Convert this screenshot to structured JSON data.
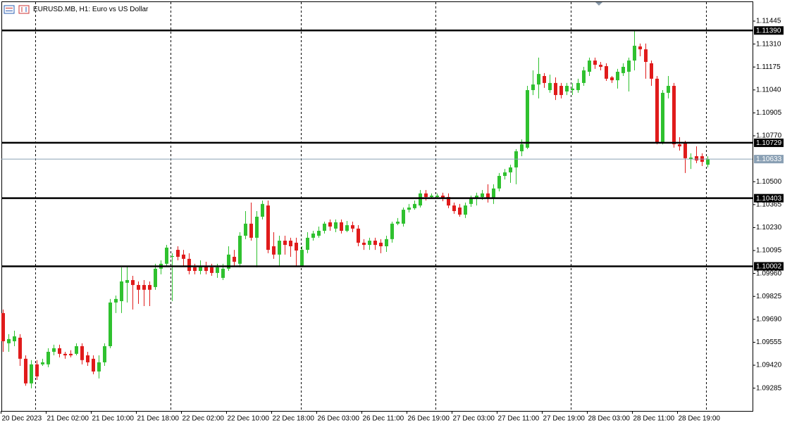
{
  "chart_data": {
    "type": "candlestick",
    "title": "EURUSD.MB, H1:  Euro vs US Dollar",
    "categories": [
      "20 Dec 2023",
      null,
      null,
      null,
      null,
      null,
      null,
      null,
      "21 Dec 02:00",
      null,
      null,
      null,
      null,
      null,
      null,
      null,
      "21 Dec 10:00",
      null,
      null,
      null,
      null,
      null,
      null,
      null,
      "21 Dec 18:00",
      null,
      null,
      null,
      null,
      null,
      null,
      null,
      "22 Dec 02:00",
      null,
      null,
      null,
      null,
      null,
      null,
      null,
      "22 Dec 10:00",
      null,
      null,
      null,
      null,
      null,
      null,
      null,
      "22 Dec 18:00",
      null,
      null,
      null,
      null,
      null,
      null,
      null,
      "26 Dec 03:00",
      null,
      null,
      null,
      null,
      null,
      null,
      null,
      "26 Dec 11:00",
      null,
      null,
      null,
      null,
      null,
      null,
      null,
      "26 Dec 19:00",
      null,
      null,
      null,
      null,
      null,
      null,
      null,
      "27 Dec 03:00",
      null,
      null,
      null,
      null,
      null,
      null,
      null,
      "27 Dec 11:00",
      null,
      null,
      null,
      null,
      null,
      null,
      null,
      "27 Dec 19:00",
      null,
      null,
      null,
      null,
      null,
      null,
      null,
      "28 Dec 03:00",
      null,
      null,
      null,
      null,
      null,
      null,
      null,
      "28 Dec 11:00",
      null,
      null,
      null,
      null,
      null,
      null,
      null,
      "28 Dec 19:00",
      null,
      null,
      null,
      null,
      null
    ],
    "open": [
      1.09727,
      1.09549,
      1.09561,
      1.09582,
      1.09458,
      1.09313,
      1.09425,
      1.09425,
      1.09425,
      1.09499,
      1.0952,
      1.09487,
      1.09487,
      1.09487,
      1.09532,
      1.09478,
      1.09458,
      1.09383,
      1.09437,
      1.09532,
      1.09789,
      1.09797,
      1.09905,
      1.09921,
      1.09892,
      1.09892,
      1.09892,
      1.0988,
      1.09988,
      1.10017,
      1.10058,
      1.10099,
      1.10071,
      1.10046,
      1.09996,
      1.09975,
      1.10004,
      1.09996,
      1.09963,
      1.09934,
      1.09988,
      1.10058,
      1.10017,
      1.10182,
      1.10253,
      1.1017,
      1.10294,
      1.1036,
      1.1012,
      1.10071,
      1.10153,
      1.10153,
      1.10141,
      1.10004,
      1.10099,
      1.1017,
      1.10182,
      1.10211,
      1.10261,
      1.10224,
      1.10261,
      1.10211,
      1.10244,
      1.10224,
      1.10141,
      1.10128,
      1.10153,
      1.10141,
      1.1012,
      1.10162,
      1.10253,
      1.10253,
      1.10335,
      1.10344,
      1.1036,
      1.10431,
      1.1041,
      1.1041,
      1.10418,
      1.1041,
      1.1036,
      1.10348,
      1.10306,
      1.10369,
      1.10402,
      1.1041,
      1.10431,
      1.10402,
      1.1046,
      1.10534,
      1.10555,
      1.10584,
      1.10679,
      1.107,
      1.11039,
      1.11072,
      1.11122,
      1.11039,
      1.11081,
      1.11064,
      1.11031,
      1.11039,
      1.11039,
      1.11081,
      1.11147,
      1.11213,
      1.11188,
      1.1118,
      1.11114,
      1.11097,
      1.11139,
      1.11147,
      1.11213,
      1.11296,
      1.11279,
      1.11197,
      1.11106,
      1.10729,
      1.11023,
      1.11064,
      1.1072,
      1.10725,
      1.10634,
      1.1065,
      1.1065,
      1.106
    ],
    "high": [
      1.09748,
      1.09603,
      1.09623,
      1.09603,
      1.09478,
      1.0945,
      1.0945,
      1.09458,
      1.0952,
      1.09541,
      1.09541,
      1.09499,
      1.09508,
      1.09549,
      1.09549,
      1.09499,
      1.09478,
      1.09478,
      1.09549,
      1.0981,
      1.0983,
      1.09996,
      1.10004,
      1.09946,
      1.09913,
      1.09921,
      1.09913,
      1.10017,
      1.10037,
      1.10128,
      1.10079,
      1.1012,
      1.10099,
      1.10079,
      1.10017,
      1.10037,
      1.10029,
      1.10017,
      1.10017,
      1.10017,
      1.1012,
      1.10099,
      1.10203,
      1.10327,
      1.10377,
      1.10327,
      1.10389,
      1.10389,
      1.10203,
      1.10182,
      1.10182,
      1.1017,
      1.1017,
      1.1012,
      1.10203,
      1.10211,
      1.10236,
      1.10265,
      1.10278,
      1.10278,
      1.10278,
      1.10269,
      1.10265,
      1.10244,
      1.10162,
      1.1017,
      1.1017,
      1.10162,
      1.10182,
      1.10265,
      1.10286,
      1.10348,
      1.10369,
      1.10389,
      1.10451,
      1.10451,
      1.10431,
      1.10431,
      1.10435,
      1.10431,
      1.10377,
      1.10369,
      1.10377,
      1.10418,
      1.10435,
      1.10451,
      1.10485,
      1.10485,
      1.10551,
      1.10575,
      1.106,
      1.10692,
      1.10749,
      1.11064,
      1.11155,
      1.1123,
      1.11139,
      1.1113,
      1.11114,
      1.11081,
      1.11081,
      1.11081,
      1.11106,
      1.11176,
      1.1123,
      1.1123,
      1.11205,
      1.11197,
      1.11122,
      1.11164,
      1.11197,
      1.1123,
      1.11387,
      1.11313,
      1.11313,
      1.11213,
      1.11122,
      1.11039,
      1.11122,
      1.11081,
      1.10762,
      1.10741,
      1.10667,
      1.10708,
      1.10667,
      1.1065
    ],
    "low": [
      1.09499,
      1.09499,
      1.09532,
      1.09416,
      1.09299,
      1.09284,
      1.09333,
      1.09416,
      1.09408,
      1.09478,
      1.09466,
      1.09458,
      1.09466,
      1.09478,
      1.09425,
      1.09416,
      1.09367,
      1.09342,
      1.09416,
      1.0952,
      1.09727,
      1.09727,
      1.09789,
      1.09748,
      1.09781,
      1.09768,
      1.09768,
      1.09864,
      1.09955,
      1.10004,
      1.09797,
      1.10037,
      1.10004,
      1.09955,
      1.09955,
      1.09955,
      1.09955,
      1.09946,
      1.09934,
      1.09921,
      1.09975,
      1.10004,
      1.09996,
      1.10162,
      1.10153,
      1.09996,
      1.10278,
      1.10079,
      1.10046,
      1.10004,
      1.10071,
      1.10058,
      1.10004,
      1.09996,
      1.10079,
      1.10153,
      1.1017,
      1.10195,
      1.10211,
      1.10203,
      1.10195,
      1.10203,
      1.10203,
      1.1012,
      1.10099,
      1.10099,
      1.10099,
      1.10079,
      1.10087,
      1.10141,
      1.10244,
      1.10236,
      1.10319,
      1.10335,
      1.10348,
      1.10389,
      1.10402,
      1.10402,
      1.10385,
      1.10344,
      1.10311,
      1.10294,
      1.10286,
      1.10352,
      1.1036,
      1.10393,
      1.10377,
      1.10369,
      1.10443,
      1.10513,
      1.10493,
      1.10485,
      1.1065,
      1.10692,
      1.1101,
      1.1099,
      1.11052,
      1.11023,
      1.10981,
      1.1099,
      1.1101,
      1.1101,
      1.11023,
      1.11064,
      1.11122,
      1.11164,
      1.11155,
      1.11093,
      1.11081,
      1.11048,
      1.11122,
      1.11031,
      1.11155,
      1.11238,
      1.11106,
      1.11064,
      1.1072,
      1.1072,
      1.1099,
      1.107,
      1.10683,
      1.10551,
      1.10575,
      1.10609,
      1.10592,
      1.10584
    ],
    "close": [
      1.09561,
      1.09574,
      1.0959,
      1.09458,
      1.09313,
      1.09425,
      1.09354,
      1.09437,
      1.09499,
      1.0952,
      1.09487,
      1.09478,
      1.09478,
      1.09532,
      1.0945,
      1.09437,
      1.09383,
      1.09437,
      1.09532,
      1.09789,
      1.0981,
      1.09913,
      1.09921,
      1.09892,
      1.09864,
      1.09864,
      1.09864,
      1.09988,
      1.10017,
      1.10112,
      1.10062,
      1.10058,
      1.10046,
      1.09975,
      1.09975,
      1.10004,
      1.09975,
      1.09963,
      1.09996,
      1.09988,
      1.10071,
      1.10029,
      1.10182,
      1.10253,
      1.1017,
      1.10294,
      1.10369,
      1.10099,
      1.10071,
      1.10153,
      1.10128,
      1.1012,
      1.10095,
      1.10099,
      1.1017,
      1.10195,
      1.10211,
      1.10253,
      1.10236,
      1.10261,
      1.10211,
      1.10244,
      1.10224,
      1.10141,
      1.10128,
      1.10153,
      1.10128,
      1.1012,
      1.10162,
      1.10253,
      1.10265,
      1.10335,
      1.10348,
      1.10369,
      1.10431,
      1.1041,
      1.10418,
      1.10418,
      1.10402,
      1.1036,
      1.10327,
      1.10306,
      1.1036,
      1.10402,
      1.10418,
      1.10431,
      1.10402,
      1.1046,
      1.10534,
      1.10555,
      1.10584,
      1.10679,
      1.1072,
      1.11039,
      1.11072,
      1.11134,
      1.11081,
      1.11081,
      1.1101,
      1.1101,
      1.11064,
      1.11048,
      1.11081,
      1.11155,
      1.11213,
      1.11188,
      1.11176,
      1.11106,
      1.11097,
      1.11147,
      1.11176,
      1.11213,
      1.113,
      1.11279,
      1.11205,
      1.11106,
      1.10729,
      1.11023,
      1.11064,
      1.1072,
      1.10708,
      1.10638,
      1.10642,
      1.10625,
      1.10617,
      1.10633
    ],
    "up_color": "#2fc12f",
    "down_color": "#e01b1b",
    "ylim": [
      1.09151,
      1.11561
    ],
    "yticks": [
      1.11445,
      {
        "value": 1.1131,
        "label": "1.11310"
      },
      1.11175,
      {
        "value": 1.1104,
        "label": "1.11040"
      },
      1.10905,
      {
        "value": 1.1077,
        "label": "1.10770"
      },
      {
        "value": 1.105,
        "label": "1.10500"
      },
      1.10365,
      {
        "value": 1.1023,
        "label": "1.10230"
      },
      1.10095,
      {
        "value": 1.0996,
        "label": "1.09960"
      },
      1.09825,
      {
        "value": 1.0969,
        "label": "1.09690"
      },
      1.09555,
      {
        "value": 1.0942,
        "label": "1.09420"
      },
      1.09285
    ],
    "levels": [
      {
        "value": 1.1139,
        "label": "1.11390"
      },
      {
        "value": 1.10729,
        "label": "1.10729"
      },
      {
        "value": 1.10403,
        "label": "1.10403"
      },
      {
        "value": 1.10002,
        "label": "1.10002"
      }
    ],
    "current_price": {
      "value": 1.10633,
      "label": "1.10633"
    },
    "grid": false
  }
}
